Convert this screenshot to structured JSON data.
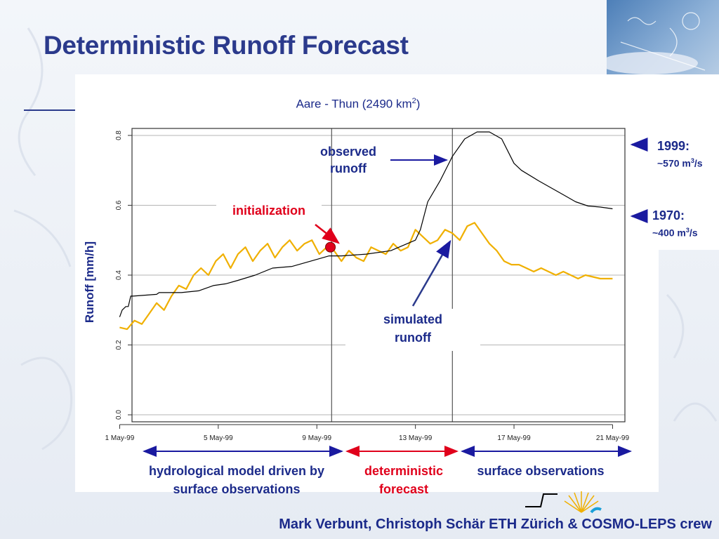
{
  "slide": {
    "title": "Deterministic Runoff Forecast",
    "credits": "Mark Verbunt, Christoph Schär ETH Zürich & COSMO-LEPS crew"
  },
  "annotations": {
    "observed": [
      "observed",
      "runoff"
    ],
    "initialization": "initialization",
    "simulated": [
      "simulated",
      "runoff"
    ],
    "y1999_label": "1999:",
    "y1999_value": "~570 m",
    "y1970_label": "1970:",
    "y1970_value": "~400 m",
    "flow_unit_tail": "/s",
    "flow_unit_sup": "3"
  },
  "periods": {
    "hydro": [
      "hydrological model driven by",
      "surface observations"
    ],
    "det": [
      "deterministic",
      "forecast"
    ],
    "surf": [
      "surface observations"
    ]
  },
  "colors": {
    "title": "#2b3a8c",
    "text_blue": "#1b2a8a",
    "red": "#e0001b",
    "observed_line": "#000000",
    "simulated_line": "#f0b000",
    "arrow_blue": "#1a1aa0",
    "arrow_red": "#e0001b"
  },
  "chart_data": {
    "type": "line",
    "title": "Aare - Thun (2490 km",
    "title_sup": "2",
    "title_tail": ")",
    "xlabel": "",
    "ylabel": "Runoff  [mm/h]",
    "xlim": [
      0.5,
      20.5
    ],
    "ylim": [
      -0.02,
      0.82
    ],
    "grid": true,
    "xticks": [
      0,
      4,
      8,
      12,
      16,
      20
    ],
    "xticklabels": [
      "1 May-99",
      "5 May-99",
      "9 May-99",
      "13 May-99",
      "17 May-99",
      "21 May-99"
    ],
    "yticks": [
      0.0,
      0.2,
      0.4,
      0.6,
      0.8
    ],
    "yticklabels": [
      "0.0",
      "0.2",
      "0.4",
      "0.6",
      "0.8"
    ],
    "vlines": [
      8.6,
      13.5
    ],
    "initialization_point": {
      "x": 8.55,
      "y": 0.48
    },
    "series": [
      {
        "name": "observed runoff",
        "x": [
          0,
          0.1,
          0.25,
          0.35,
          0.45,
          0.55,
          1.5,
          1.6,
          2.5,
          3.2,
          3.8,
          4.3,
          4.8,
          5.5,
          6.2,
          7.0,
          7.5,
          8.0,
          8.5,
          9.0,
          10.0,
          11.0,
          12.0,
          12.2,
          12.5,
          13.0,
          13.5,
          14.0,
          14.5,
          15.0,
          15.5,
          16.0,
          16.3,
          17.0,
          18.0,
          18.5,
          19.0,
          19.5,
          20.0
        ],
        "values": [
          0.28,
          0.3,
          0.31,
          0.31,
          0.34,
          0.34,
          0.345,
          0.35,
          0.35,
          0.355,
          0.37,
          0.375,
          0.385,
          0.4,
          0.42,
          0.425,
          0.435,
          0.445,
          0.455,
          0.455,
          0.46,
          0.47,
          0.5,
          0.53,
          0.61,
          0.67,
          0.74,
          0.79,
          0.81,
          0.81,
          0.79,
          0.72,
          0.7,
          0.67,
          0.63,
          0.61,
          0.598,
          0.595,
          0.59
        ]
      },
      {
        "name": "simulated runoff",
        "x": [
          0,
          0.3,
          0.6,
          0.9,
          1.2,
          1.5,
          1.8,
          2.1,
          2.4,
          2.7,
          3.0,
          3.3,
          3.6,
          3.9,
          4.2,
          4.5,
          4.8,
          5.1,
          5.4,
          5.7,
          6.0,
          6.3,
          6.6,
          6.9,
          7.2,
          7.5,
          7.8,
          8.1,
          8.4,
          8.7,
          9.0,
          9.3,
          9.6,
          9.9,
          10.2,
          10.5,
          10.8,
          11.1,
          11.4,
          11.7,
          12.0,
          12.3,
          12.6,
          12.9,
          13.2,
          13.5,
          13.8,
          14.1,
          14.4,
          14.7,
          15.0,
          15.3,
          15.6,
          15.9,
          16.2,
          16.5,
          16.8,
          17.1,
          17.4,
          17.7,
          18.0,
          18.3,
          18.6,
          18.9,
          19.2,
          19.5,
          19.8,
          20.0
        ],
        "values": [
          0.25,
          0.245,
          0.27,
          0.26,
          0.29,
          0.32,
          0.3,
          0.34,
          0.37,
          0.36,
          0.4,
          0.42,
          0.4,
          0.44,
          0.46,
          0.42,
          0.46,
          0.48,
          0.44,
          0.47,
          0.49,
          0.45,
          0.48,
          0.5,
          0.47,
          0.49,
          0.5,
          0.46,
          0.48,
          0.47,
          0.44,
          0.47,
          0.45,
          0.44,
          0.48,
          0.47,
          0.46,
          0.49,
          0.47,
          0.48,
          0.53,
          0.51,
          0.49,
          0.5,
          0.53,
          0.52,
          0.5,
          0.54,
          0.55,
          0.52,
          0.49,
          0.47,
          0.44,
          0.43,
          0.43,
          0.42,
          0.41,
          0.42,
          0.41,
          0.4,
          0.41,
          0.4,
          0.39,
          0.4,
          0.395,
          0.39,
          0.39,
          0.39
        ]
      }
    ]
  }
}
